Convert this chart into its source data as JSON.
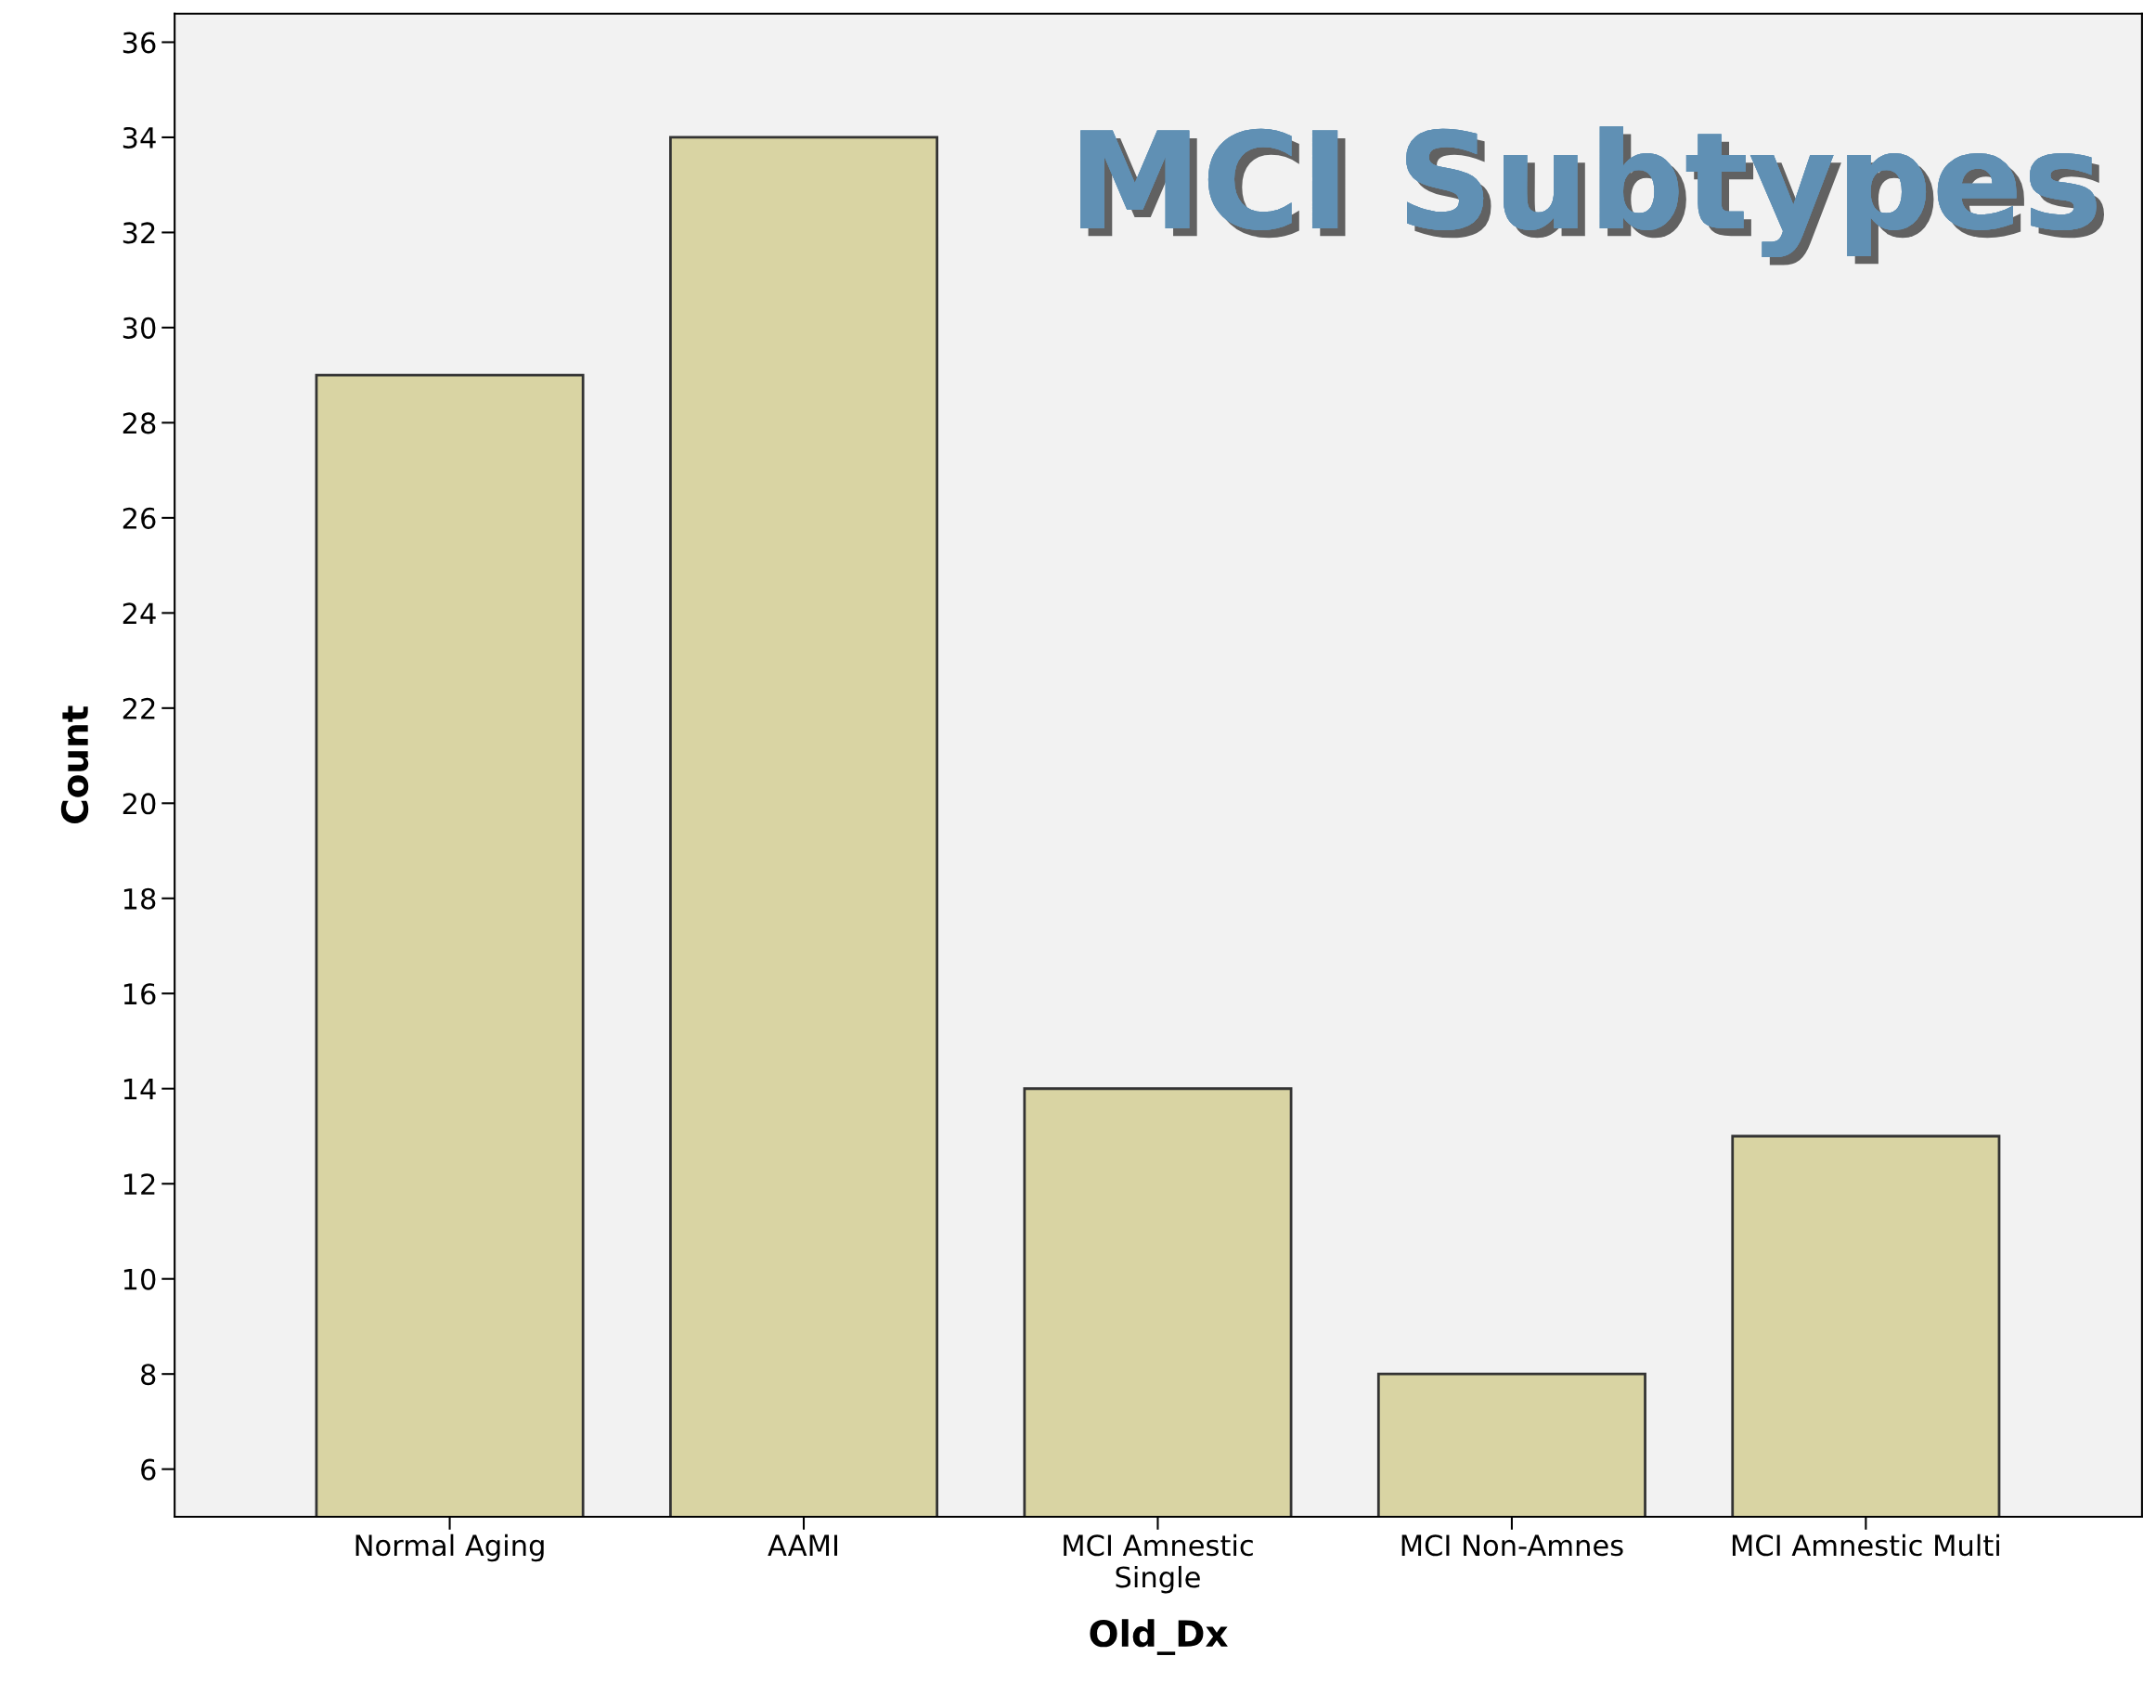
{
  "chart_data": {
    "type": "bar",
    "title": "MCI Subtypes",
    "xlabel": "Old_Dx",
    "ylabel": "Count",
    "categories": [
      "Normal Aging",
      "AAMI",
      "MCI Amnestic\nSingle",
      "MCI Non-Amnes",
      "MCI Amnestic Multi"
    ],
    "values": [
      29,
      34,
      14,
      8,
      13
    ],
    "color": "#d9d4a3",
    "ylim": [
      5,
      36.6
    ],
    "yticks": [
      6,
      8,
      10,
      12,
      14,
      16,
      18,
      20,
      22,
      24,
      26,
      28,
      30,
      32,
      34,
      36
    ],
    "grid": false
  }
}
